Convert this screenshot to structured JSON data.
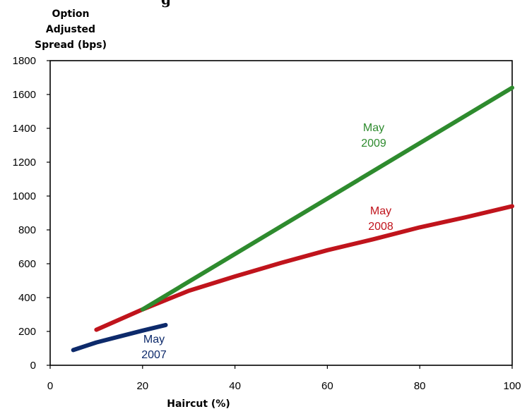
{
  "chart_data": {
    "type": "line",
    "title_fragment": "g",
    "ylabel_lines": [
      "Option",
      "Adjusted",
      "Spread (bps)"
    ],
    "xlabel": "Haircut (%)",
    "xlim": [
      0,
      100
    ],
    "ylim": [
      0,
      1800
    ],
    "xticks": [
      "0",
      "20",
      "40",
      "60",
      "80",
      "100"
    ],
    "yticks": [
      "0",
      "200",
      "400",
      "600",
      "800",
      "1000",
      "1200",
      "1400",
      "1600",
      "1800"
    ],
    "grid": false,
    "legend": "none",
    "series": [
      {
        "name_lines": [
          "May",
          "2007"
        ],
        "color": "#0d2a6b",
        "x": [
          5,
          10,
          15,
          20,
          25
        ],
        "y": [
          90,
          135,
          170,
          205,
          238
        ]
      },
      {
        "name_lines": [
          "May",
          "2008"
        ],
        "color": "#c0141c",
        "x": [
          10,
          20,
          30,
          40,
          50,
          60,
          70,
          80,
          90,
          100
        ],
        "y": [
          210,
          330,
          440,
          525,
          605,
          680,
          745,
          815,
          875,
          940
        ]
      },
      {
        "name_lines": [
          "May",
          "2009"
        ],
        "color": "#2e8b2e",
        "x": [
          20,
          100
        ],
        "y": [
          330,
          1640
        ]
      }
    ]
  }
}
